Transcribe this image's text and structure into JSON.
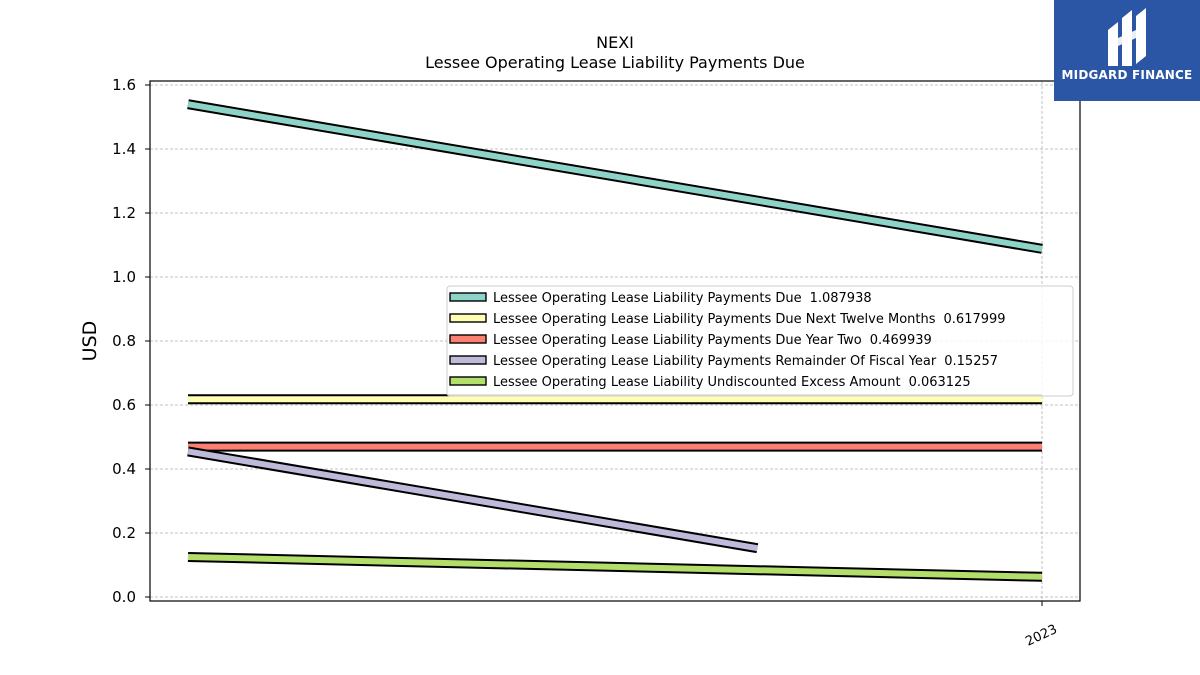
{
  "brand": {
    "name": "MIDGARD FINANCE",
    "logo_icon": "midgard-logo-icon",
    "color": "#2b56a6"
  },
  "chart_data": {
    "type": "line",
    "title": "NEXI",
    "subtitle": "Lessee Operating Lease Liability Payments Due",
    "ylabel": "USD",
    "xlabel": "",
    "ylim": [
      0,
      1.6
    ],
    "xlim": [
      -0.9,
      0.09
    ],
    "yticks": [
      "0.0",
      "0.2",
      "0.4",
      "0.6",
      "0.8",
      "1.0",
      "1.2",
      "1.4",
      "1.6"
    ],
    "xticks": [
      {
        "value": 0,
        "label": "2023"
      }
    ],
    "grid": true,
    "legend_position": "center-right",
    "series": [
      {
        "name": "Lessee Operating Lease Liability Payments Due",
        "legend_value": "1.087938",
        "color": "#8dd3c7",
        "points": [
          [
            -0.9,
            1.54
          ],
          [
            0,
            1.087938
          ]
        ]
      },
      {
        "name": "Lessee Operating Lease Liability Payments Due Next Twelve Months",
        "legend_value": "0.617999",
        "color": "#ffffb3",
        "points": [
          [
            -0.9,
            0.617999
          ],
          [
            0,
            0.617999
          ]
        ]
      },
      {
        "name": "Lessee Operating Lease Liability Payments Due Year Two",
        "legend_value": "0.469939",
        "color": "#fb8072",
        "points": [
          [
            -0.9,
            0.469939
          ],
          [
            0,
            0.469939
          ]
        ]
      },
      {
        "name": "Lessee Operating Lease Liability Payments Remainder Of Fiscal Year",
        "legend_value": "0.15257",
        "color": "#bebada",
        "points": [
          [
            -0.9,
            0.455
          ],
          [
            -0.3,
            0.15257
          ]
        ]
      },
      {
        "name": "Lessee Operating Lease Liability Undiscounted Excess Amount",
        "legend_value": "0.063125",
        "color": "#b3de69",
        "points": [
          [
            -0.9,
            0.125
          ],
          [
            0,
            0.063125
          ]
        ]
      }
    ]
  }
}
